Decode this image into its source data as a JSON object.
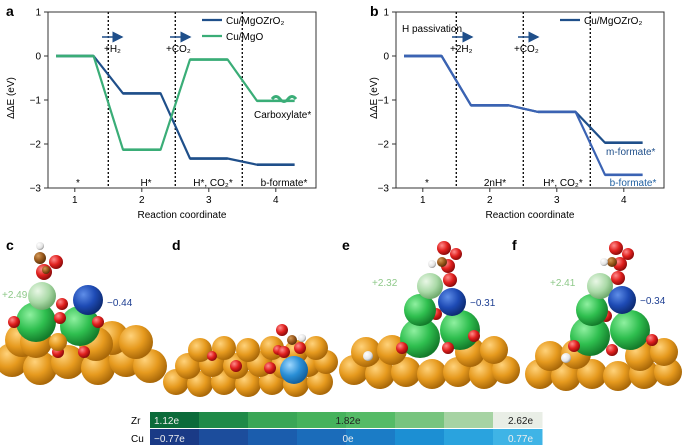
{
  "colors": {
    "zr_series": "#1f4f8a",
    "mgo_series": "#3aad77",
    "axis": "#333333"
  },
  "panel_a": {
    "letter": "a",
    "ylabel": "ΔΔE (eV)",
    "xlabel": "Reaction coordinate",
    "legend": [
      "Cu/MgOZrO₂",
      "Cu/MgO"
    ],
    "step_arrows": [
      "+H₂",
      "+CO₂"
    ],
    "state_labels": [
      "*",
      "H*",
      "H*, CO₂*",
      "b-formate*"
    ],
    "annotation": "Carboxylate*",
    "yticks": [
      "1",
      "0",
      "−1",
      "−2",
      "−3"
    ],
    "xticks": [
      "1",
      "2",
      "3",
      "4"
    ]
  },
  "panel_b": {
    "letter": "b",
    "ylabel": "ΔΔE (eV)",
    "xlabel": "Reaction coordinate",
    "legend": [
      "Cu/MgOZrO₂"
    ],
    "passivation_label": "H passivation",
    "step_arrows": [
      "+2H₂",
      "+CO₂"
    ],
    "state_labels": [
      "*",
      "2nH*",
      "H*, CO₂*",
      "b-formate*"
    ],
    "annotation": "m-formate*",
    "yticks": [
      "1",
      "0",
      "−1",
      "−2",
      "−3"
    ],
    "xticks": [
      "1",
      "2",
      "3",
      "4"
    ]
  },
  "chart_data": [
    {
      "type": "line",
      "title": "a",
      "xlabel": "Reaction coordinate",
      "ylabel": "ΔΔE (eV)",
      "ylim": [
        -3,
        1
      ],
      "xlim": [
        0.6,
        4.6
      ],
      "steps": [
        1,
        2,
        3,
        4
      ],
      "series": [
        {
          "name": "Cu/MgOZrO₂",
          "values": [
            0,
            -0.85,
            -2.33,
            -2.47
          ]
        },
        {
          "name": "Cu/MgO",
          "values": [
            0,
            -2.13,
            -0.08,
            -1.02
          ]
        }
      ]
    },
    {
      "type": "line",
      "title": "b",
      "xlabel": "Reaction coordinate",
      "ylabel": "ΔΔE (eV)",
      "ylim": [
        -3,
        1
      ],
      "xlim": [
        0.6,
        4.6
      ],
      "steps": [
        1,
        2,
        3,
        4
      ],
      "series": [
        {
          "name": "Cu/MgOZrO₂ (m-formate)",
          "values": [
            0,
            -1.12,
            -1.27,
            -1.97
          ]
        },
        {
          "name": "Cu/MgOZrO₂ (b-formate)",
          "values": [
            0,
            -1.12,
            -1.27,
            -2.7
          ]
        }
      ]
    }
  ],
  "structures": {
    "c": {
      "letter": "c",
      "zr_charge": "+2.49",
      "cu_charge": "−0.44"
    },
    "d": {
      "letter": "d"
    },
    "e": {
      "letter": "e",
      "zr_charge": "+2.32",
      "cu_charge": "−0.31"
    },
    "f": {
      "letter": "f",
      "zr_charge": "+2.41",
      "cu_charge": "−0.34"
    }
  },
  "colorbar": {
    "zr_label": "Zr",
    "cu_label": "Cu",
    "zr_values": [
      "1.12e",
      "1.82e",
      "2.62e"
    ],
    "cu_values": [
      "−0.77e",
      "0e",
      "0.77e"
    ],
    "zr_colors": [
      "#0b6b3a",
      "#1f8a48",
      "#3aa656",
      "#46b25c",
      "#55bb66",
      "#77c47e",
      "#a6d3a3",
      "#e9eee6"
    ],
    "cu_colors": [
      "#1a3a86",
      "#1c4d9c",
      "#1b5dad",
      "#1b6cba",
      "#1b7cc6",
      "#1c8fd3",
      "#2aa3de",
      "#3fb4e6"
    ]
  }
}
